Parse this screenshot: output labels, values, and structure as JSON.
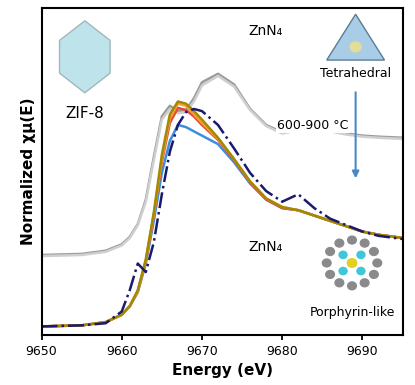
{
  "chart_data": {
    "type": "line",
    "x_label": "Energy (eV)",
    "y_label": "Normalized χμ(E)",
    "x": [
      9650,
      9655,
      9658,
      9660,
      9661,
      9662,
      9663,
      9664,
      9665,
      9666,
      9667,
      9668,
      9669,
      9670,
      9672,
      9674,
      9676,
      9678,
      9680,
      9682,
      9684,
      9686,
      9688,
      9690,
      9692,
      9695
    ],
    "series": [
      {
        "color": "#9a9a9a",
        "line_style": "solid",
        "values": [
          0.68,
          0.69,
          0.72,
          0.78,
          0.85,
          0.97,
          1.2,
          1.6,
          1.98,
          2.08,
          2.03,
          2.04,
          2.15,
          2.3,
          2.38,
          2.28,
          2.05,
          1.9,
          1.83,
          1.86,
          1.88,
          1.85,
          1.82,
          1.8,
          1.79,
          1.78
        ]
      },
      {
        "color": "#cfcfcf",
        "line_style": "solid",
        "values": [
          0.67,
          0.68,
          0.71,
          0.77,
          0.84,
          0.96,
          1.18,
          1.57,
          1.95,
          2.05,
          2.01,
          2.02,
          2.12,
          2.27,
          2.36,
          2.26,
          2.04,
          1.89,
          1.82,
          1.85,
          1.87,
          1.84,
          1.81,
          1.79,
          1.78,
          1.77
        ]
      },
      {
        "color": "#3b8fe0",
        "line_style": "solid",
        "values": [
          0.01,
          0.02,
          0.05,
          0.12,
          0.2,
          0.33,
          0.6,
          1.0,
          1.45,
          1.75,
          1.9,
          1.88,
          1.84,
          1.8,
          1.72,
          1.55,
          1.35,
          1.2,
          1.12,
          1.1,
          1.05,
          1.0,
          0.95,
          0.9,
          0.87,
          0.84
        ]
      },
      {
        "color": "#e8463a",
        "line_style": "solid",
        "values": [
          0.01,
          0.02,
          0.05,
          0.12,
          0.2,
          0.34,
          0.62,
          1.05,
          1.55,
          1.92,
          2.06,
          2.04,
          1.98,
          1.9,
          1.76,
          1.57,
          1.36,
          1.2,
          1.12,
          1.1,
          1.05,
          1.0,
          0.95,
          0.9,
          0.87,
          0.84
        ]
      },
      {
        "color": "#f2a03a",
        "line_style": "solid",
        "values": [
          0.01,
          0.02,
          0.05,
          0.12,
          0.2,
          0.34,
          0.63,
          1.06,
          1.58,
          1.96,
          2.1,
          2.08,
          2.0,
          1.92,
          1.77,
          1.58,
          1.37,
          1.21,
          1.13,
          1.1,
          1.05,
          1.0,
          0.95,
          0.9,
          0.87,
          0.84
        ]
      },
      {
        "color": "#a08a00",
        "line_style": "solid",
        "values": [
          0.01,
          0.02,
          0.05,
          0.12,
          0.2,
          0.35,
          0.64,
          1.08,
          1.62,
          2.0,
          2.12,
          2.1,
          2.03,
          1.95,
          1.78,
          1.58,
          1.37,
          1.21,
          1.13,
          1.1,
          1.05,
          1.0,
          0.95,
          0.9,
          0.87,
          0.84
        ]
      },
      {
        "color": "#1a1a6e",
        "line_style": "dashdot",
        "values": [
          0.01,
          0.02,
          0.04,
          0.15,
          0.35,
          0.6,
          0.52,
          0.8,
          1.25,
          1.65,
          1.9,
          2.02,
          2.05,
          2.03,
          1.9,
          1.68,
          1.45,
          1.28,
          1.18,
          1.25,
          1.12,
          1.02,
          0.96,
          0.9,
          0.86,
          0.83
        ]
      }
    ],
    "xlim": [
      9650,
      9695
    ],
    "xticks": [
      9650,
      9660,
      9670,
      9680,
      9690
    ],
    "ylim": [
      -0.07,
      3.0
    ],
    "tick_labels": "x",
    "annotations": [
      {
        "text": "ZIF-8"
      },
      {
        "text": "ZnN₄"
      },
      {
        "text": "Tetrahedral"
      },
      {
        "text": "600-900 °C"
      },
      {
        "text": "ZnN₄"
      },
      {
        "text": "Porphyrin-like"
      }
    ]
  }
}
